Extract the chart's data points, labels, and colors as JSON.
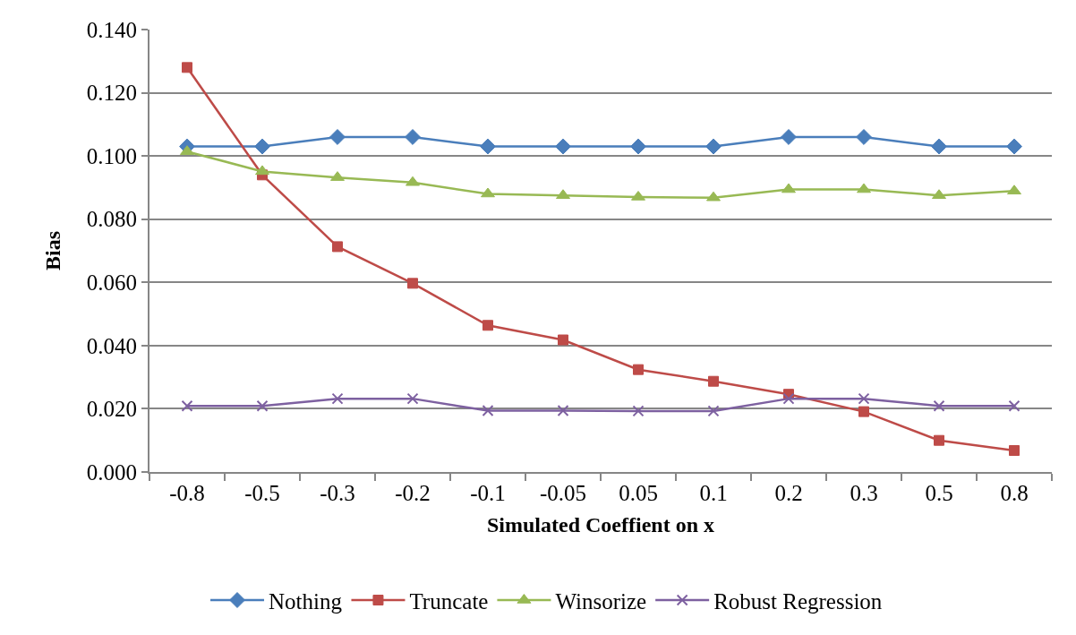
{
  "chart_data": {
    "type": "line",
    "xlabel": "Simulated Coeffient on x",
    "ylabel": "Bias",
    "categories": [
      "-0.8",
      "-0.5",
      "-0.3",
      "-0.2",
      "-0.1",
      "-0.05",
      "0.05",
      "0.1",
      "0.2",
      "0.3",
      "0.5",
      "0.8"
    ],
    "series": [
      {
        "name": "Nothing",
        "color": "#4a7ebb",
        "marker": "diamond",
        "values": [
          0.103,
          0.103,
          0.106,
          0.106,
          0.103,
          0.103,
          0.103,
          0.103,
          0.106,
          0.106,
          0.103,
          0.103
        ]
      },
      {
        "name": "Truncate",
        "color": "#be4b48",
        "marker": "square",
        "values": [
          0.128,
          0.094,
          0.0713,
          0.0597,
          0.0464,
          0.0418,
          0.0324,
          0.0287,
          0.0246,
          0.0191,
          0.01,
          0.0068
        ]
      },
      {
        "name": "Winsorize",
        "color": "#98b954",
        "marker": "triangle",
        "values": [
          0.1014,
          0.0951,
          0.0932,
          0.0916,
          0.088,
          0.0875,
          0.087,
          0.0868,
          0.0894,
          0.0894,
          0.0875,
          0.0889
        ]
      },
      {
        "name": "Robust Regression",
        "color": "#7d60a0",
        "marker": "cross",
        "values": [
          0.0209,
          0.0209,
          0.0232,
          0.0232,
          0.0194,
          0.0194,
          0.0193,
          0.0193,
          0.0232,
          0.0232,
          0.0209,
          0.0209
        ]
      }
    ],
    "ylim": [
      0,
      0.14
    ],
    "yticks": [
      {
        "value": 0,
        "label": "0.000"
      },
      {
        "value": 0.02,
        "label": "0.020"
      },
      {
        "value": 0.04,
        "label": "0.040"
      },
      {
        "value": 0.06,
        "label": "0.060"
      },
      {
        "value": 0.08,
        "label": "0.080"
      },
      {
        "value": 0.1,
        "label": "0.100"
      },
      {
        "value": 0.12,
        "label": "0.120"
      },
      {
        "value": 0.14,
        "label": "0.140"
      }
    ],
    "grid": "y",
    "legend": "bottom",
    "line_style": "solid"
  }
}
